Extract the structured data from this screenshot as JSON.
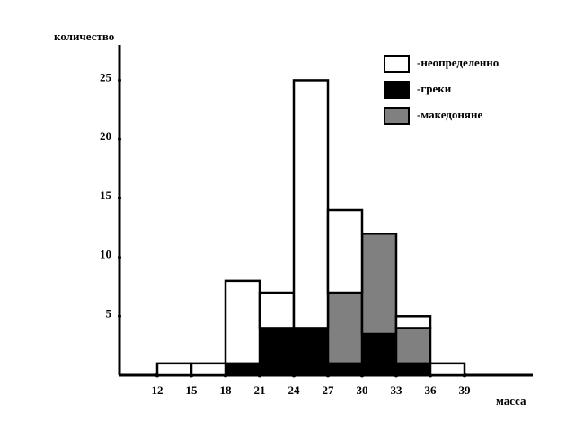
{
  "chart_data": {
    "type": "histogram",
    "x_label": "масса",
    "y_label": "количество",
    "bins": [
      12,
      15,
      18,
      21,
      24,
      27,
      30,
      33,
      36,
      39
    ],
    "series": [
      {
        "name": "-неопределенно",
        "color": "#ffffff",
        "values": [
          1,
          1,
          7,
          3,
          21,
          7,
          0,
          1,
          1
        ]
      },
      {
        "name": "-греки",
        "color": "#000000",
        "values": [
          0,
          0,
          1,
          4,
          4,
          1,
          3.5,
          1,
          0
        ]
      },
      {
        "name": "-македоняне",
        "color": "#808080",
        "values": [
          0,
          0,
          0,
          0,
          0,
          6,
          8.5,
          3,
          0
        ]
      }
    ],
    "xlim": [
      9,
      45
    ],
    "ylim": [
      0,
      28
    ],
    "xticks": [
      12,
      15,
      18,
      21,
      24,
      27,
      30,
      33,
      36,
      39
    ],
    "yticks": [
      5,
      10,
      15,
      20,
      25
    ],
    "stacked": true
  }
}
